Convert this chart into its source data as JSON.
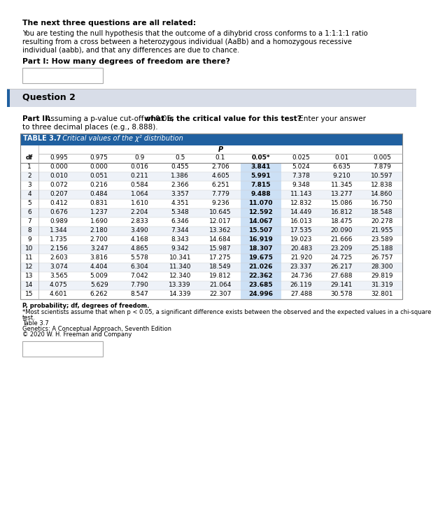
{
  "title_text": "The next three questions are all related:",
  "intro_line1": "You are testing the null hypothesis that the outcome of a dihybrid cross conforms to a 1:1:1:1 ratio",
  "intro_line2": "resulting from a cross between a heterozygous individual (AaBb) and a homozygous recessive",
  "intro_line3": "individual (aabb), and that any differences are due to chance.",
  "part1_text": "Part I: How many degrees of freedom are there?",
  "question2_label": "Question 2",
  "part2_bold": "Part II:",
  "part2_normal": " Assuming a p-value cut-off of 0.05, ",
  "part2_bold2": "what is the critical value for this test?",
  "part2_normal2": " Enter your answer",
  "part2_line2": "to three decimal places (e.g., 8.888).",
  "table_title": "TABLE 3.7",
  "table_subtitle": "  Critical values of the χ² distribution",
  "col_headers": [
    "df",
    "0.995",
    "0.975",
    "0.9",
    "0.5",
    "0.1",
    "0.05*",
    "0.025",
    "0.01",
    "0.005"
  ],
  "p_label": "P",
  "table_data": [
    [
      "1",
      "0.000",
      "0.000",
      "0.016",
      "0.455",
      "2.706",
      "3.841",
      "5.024",
      "6.635",
      "7.879"
    ],
    [
      "2",
      "0.010",
      "0.051",
      "0.211",
      "1.386",
      "4.605",
      "5.991",
      "7.378",
      "9.210",
      "10.597"
    ],
    [
      "3",
      "0.072",
      "0.216",
      "0.584",
      "2.366",
      "6.251",
      "7.815",
      "9.348",
      "11.345",
      "12.838"
    ],
    [
      "4",
      "0.207",
      "0.484",
      "1.064",
      "3.357",
      "7.779",
      "9.488",
      "11.143",
      "13.277",
      "14.860"
    ],
    [
      "5",
      "0.412",
      "0.831",
      "1.610",
      "4.351",
      "9.236",
      "11.070",
      "12.832",
      "15.086",
      "16.750"
    ],
    [
      "6",
      "0.676",
      "1.237",
      "2.204",
      "5.348",
      "10.645",
      "12.592",
      "14.449",
      "16.812",
      "18.548"
    ],
    [
      "7",
      "0.989",
      "1.690",
      "2.833",
      "6.346",
      "12.017",
      "14.067",
      "16.013",
      "18.475",
      "20.278"
    ],
    [
      "8",
      "1.344",
      "2.180",
      "3.490",
      "7.344",
      "13.362",
      "15.507",
      "17.535",
      "20.090",
      "21.955"
    ],
    [
      "9",
      "1.735",
      "2.700",
      "4.168",
      "8.343",
      "14.684",
      "16.919",
      "19.023",
      "21.666",
      "23.589"
    ],
    [
      "10",
      "2.156",
      "3.247",
      "4.865",
      "9.342",
      "15.987",
      "18.307",
      "20.483",
      "23.209",
      "25.188"
    ],
    [
      "11",
      "2.603",
      "3.816",
      "5.578",
      "10.341",
      "17.275",
      "19.675",
      "21.920",
      "24.725",
      "26.757"
    ],
    [
      "12",
      "3.074",
      "4.404",
      "6.304",
      "11.340",
      "18.549",
      "21.026",
      "23.337",
      "26.217",
      "28.300"
    ],
    [
      "13",
      "3.565",
      "5.009",
      "7.042",
      "12.340",
      "19.812",
      "22.362",
      "24.736",
      "27.688",
      "29.819"
    ],
    [
      "14",
      "4.075",
      "5.629",
      "7.790",
      "13.339",
      "21.064",
      "23.685",
      "26.119",
      "29.141",
      "31.319"
    ],
    [
      "15",
      "4.601",
      "6.262",
      "8.547",
      "14.339",
      "22.307",
      "24.996",
      "27.488",
      "30.578",
      "32.801"
    ]
  ],
  "footnote1": "P, probability; df, degrees of freedom.",
  "footnote2": "*Most scientists assume that when p < 0.05, a significant difference exists between the observed and the expected values in a chi-square",
  "footnote2b": "test.",
  "footnote3": "Table 3.7",
  "footnote4": "Genetics: A Conceptual Approach, Seventh Edition",
  "footnote5": "© 2020 W. H. Freeman and Company",
  "highlight_col": 6,
  "highlight_color": "#cce0f5",
  "table_header_bg": "#2060a0",
  "table_border_color": "#888888",
  "row_alt_color": "#eef2f8",
  "row_normal_color": "#ffffff",
  "question2_bg": "#d8dde8",
  "page_bg": "#ffffff",
  "left_accent_color": "#2060a0",
  "sep_color": "#bbbbbb"
}
